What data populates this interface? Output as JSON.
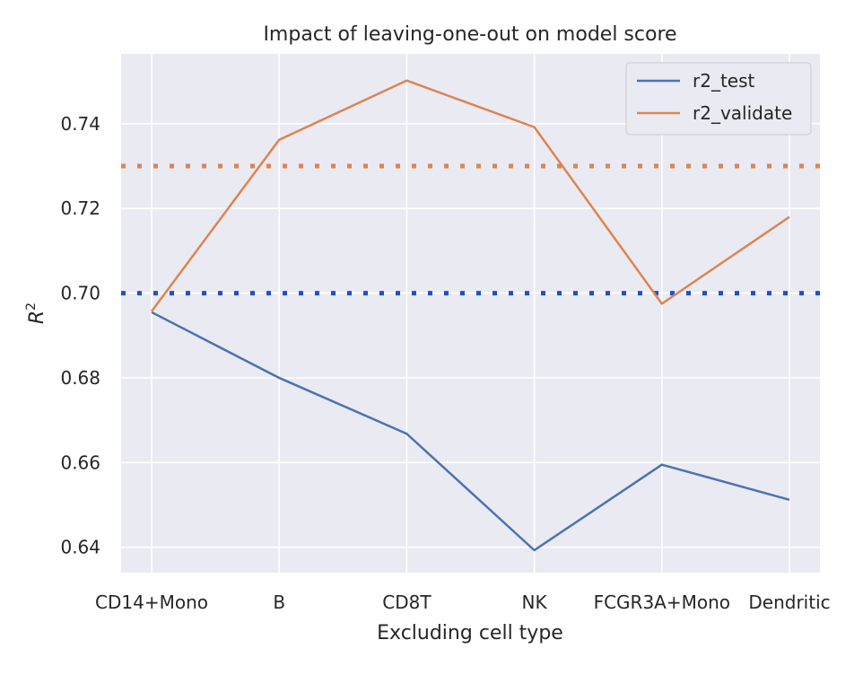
{
  "chart_data": {
    "type": "line",
    "title": "Impact of leaving-one-out on model score",
    "xlabel": "Excluding cell type",
    "ylabel": "R",
    "ylabel_superscript": "2",
    "categories": [
      "CD14+Mono",
      "B",
      "CD8T",
      "NK",
      "FCGR3A+Mono",
      "Dendritic"
    ],
    "y_ticks": [
      "0.64",
      "0.66",
      "0.68",
      "0.70",
      "0.72",
      "0.74"
    ],
    "ylim": [
      0.634,
      0.7565
    ],
    "grid": true,
    "legend_position": "top-right",
    "series": [
      {
        "name": "r2_test",
        "color": "#4c72b0",
        "values": [
          0.6955,
          0.68,
          0.6668,
          0.6393,
          0.6595,
          0.6512
        ]
      },
      {
        "name": "r2_validate",
        "color": "#dd8452",
        "values": [
          0.6957,
          0.7362,
          0.7502,
          0.7392,
          0.6975,
          0.718
        ]
      }
    ],
    "reference_lines": [
      {
        "value": 0.73,
        "color": "#dd8452",
        "style": "dotted"
      },
      {
        "value": 0.7,
        "color": "#1f4fcc",
        "style": "dotted"
      }
    ]
  }
}
